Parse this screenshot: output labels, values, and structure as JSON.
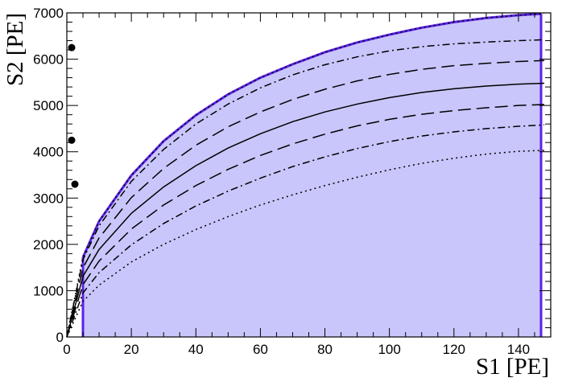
{
  "chart_data": {
    "type": "line",
    "xlabel": "S1 [PE]",
    "ylabel": "S2 [PE]",
    "xlim": [
      0,
      150
    ],
    "ylim": [
      0,
      7000
    ],
    "grid": false,
    "x_ticks": [
      "0",
      "20",
      "40",
      "60",
      "80",
      "100",
      "120",
      "140"
    ],
    "y_ticks": [
      "0",
      "1000",
      "2000",
      "3000",
      "4000",
      "5000",
      "6000",
      "7000"
    ],
    "colors": {
      "band_fill": "#c9c6fb",
      "band_edge": "#5a22e8",
      "lines": "#000000",
      "points": "#000000"
    },
    "acceptance_region": {
      "s1_min": 5,
      "s1_max": 147,
      "upper_edge": [
        {
          "x": 5,
          "y": 1720
        },
        {
          "x": 10,
          "y": 2500
        },
        {
          "x": 20,
          "y": 3490
        },
        {
          "x": 30,
          "y": 4230
        },
        {
          "x": 40,
          "y": 4790
        },
        {
          "x": 50,
          "y": 5240
        },
        {
          "x": 60,
          "y": 5600
        },
        {
          "x": 70,
          "y": 5890
        },
        {
          "x": 80,
          "y": 6150
        },
        {
          "x": 90,
          "y": 6360
        },
        {
          "x": 100,
          "y": 6530
        },
        {
          "x": 110,
          "y": 6680
        },
        {
          "x": 120,
          "y": 6800
        },
        {
          "x": 130,
          "y": 6890
        },
        {
          "x": 140,
          "y": 6950
        },
        {
          "x": 147,
          "y": 6980
        }
      ]
    },
    "series": [
      {
        "style": "dotted",
        "points": [
          {
            "x": 0,
            "y": 0
          },
          {
            "x": 5,
            "y": 770
          },
          {
            "x": 10,
            "y": 1120
          },
          {
            "x": 20,
            "y": 1620
          },
          {
            "x": 30,
            "y": 2000
          },
          {
            "x": 40,
            "y": 2320
          },
          {
            "x": 50,
            "y": 2600
          },
          {
            "x": 60,
            "y": 2850
          },
          {
            "x": 70,
            "y": 3070
          },
          {
            "x": 80,
            "y": 3270
          },
          {
            "x": 90,
            "y": 3450
          },
          {
            "x": 100,
            "y": 3610
          },
          {
            "x": 110,
            "y": 3750
          },
          {
            "x": 120,
            "y": 3860
          },
          {
            "x": 130,
            "y": 3950
          },
          {
            "x": 140,
            "y": 4010
          },
          {
            "x": 148,
            "y": 4030
          }
        ]
      },
      {
        "style": "dash-dot",
        "points": [
          {
            "x": 0,
            "y": 0
          },
          {
            "x": 5,
            "y": 950
          },
          {
            "x": 10,
            "y": 1390
          },
          {
            "x": 20,
            "y": 1990
          },
          {
            "x": 30,
            "y": 2450
          },
          {
            "x": 40,
            "y": 2830
          },
          {
            "x": 50,
            "y": 3150
          },
          {
            "x": 60,
            "y": 3430
          },
          {
            "x": 70,
            "y": 3680
          },
          {
            "x": 80,
            "y": 3890
          },
          {
            "x": 90,
            "y": 4070
          },
          {
            "x": 100,
            "y": 4220
          },
          {
            "x": 110,
            "y": 4340
          },
          {
            "x": 120,
            "y": 4430
          },
          {
            "x": 130,
            "y": 4500
          },
          {
            "x": 140,
            "y": 4550
          },
          {
            "x": 148,
            "y": 4580
          }
        ]
      },
      {
        "style": "long-dash",
        "points": [
          {
            "x": 0,
            "y": 0
          },
          {
            "x": 5,
            "y": 1130
          },
          {
            "x": 10,
            "y": 1640
          },
          {
            "x": 20,
            "y": 2330
          },
          {
            "x": 30,
            "y": 2850
          },
          {
            "x": 40,
            "y": 3270
          },
          {
            "x": 50,
            "y": 3620
          },
          {
            "x": 60,
            "y": 3920
          },
          {
            "x": 70,
            "y": 4170
          },
          {
            "x": 80,
            "y": 4380
          },
          {
            "x": 90,
            "y": 4560
          },
          {
            "x": 100,
            "y": 4700
          },
          {
            "x": 110,
            "y": 4810
          },
          {
            "x": 120,
            "y": 4890
          },
          {
            "x": 130,
            "y": 4950
          },
          {
            "x": 140,
            "y": 5000
          },
          {
            "x": 148,
            "y": 5020
          }
        ]
      },
      {
        "style": "solid",
        "points": [
          {
            "x": 0,
            "y": 0
          },
          {
            "x": 5,
            "y": 1310
          },
          {
            "x": 10,
            "y": 1890
          },
          {
            "x": 20,
            "y": 2670
          },
          {
            "x": 30,
            "y": 3240
          },
          {
            "x": 40,
            "y": 3700
          },
          {
            "x": 50,
            "y": 4080
          },
          {
            "x": 60,
            "y": 4390
          },
          {
            "x": 70,
            "y": 4650
          },
          {
            "x": 80,
            "y": 4860
          },
          {
            "x": 90,
            "y": 5030
          },
          {
            "x": 100,
            "y": 5170
          },
          {
            "x": 110,
            "y": 5280
          },
          {
            "x": 120,
            "y": 5360
          },
          {
            "x": 130,
            "y": 5420
          },
          {
            "x": 140,
            "y": 5460
          },
          {
            "x": 148,
            "y": 5480
          }
        ]
      },
      {
        "style": "long-dash",
        "points": [
          {
            "x": 0,
            "y": 0
          },
          {
            "x": 5,
            "y": 1490
          },
          {
            "x": 10,
            "y": 2140
          },
          {
            "x": 20,
            "y": 3010
          },
          {
            "x": 30,
            "y": 3640
          },
          {
            "x": 40,
            "y": 4140
          },
          {
            "x": 50,
            "y": 4540
          },
          {
            "x": 60,
            "y": 4860
          },
          {
            "x": 70,
            "y": 5130
          },
          {
            "x": 80,
            "y": 5350
          },
          {
            "x": 90,
            "y": 5530
          },
          {
            "x": 100,
            "y": 5670
          },
          {
            "x": 110,
            "y": 5780
          },
          {
            "x": 120,
            "y": 5860
          },
          {
            "x": 130,
            "y": 5910
          },
          {
            "x": 140,
            "y": 5950
          },
          {
            "x": 148,
            "y": 5970
          }
        ]
      },
      {
        "style": "dash-dot",
        "points": [
          {
            "x": 0,
            "y": 0
          },
          {
            "x": 5,
            "y": 1670
          },
          {
            "x": 10,
            "y": 2400
          },
          {
            "x": 20,
            "y": 3360
          },
          {
            "x": 30,
            "y": 4050
          },
          {
            "x": 40,
            "y": 4600
          },
          {
            "x": 50,
            "y": 5030
          },
          {
            "x": 60,
            "y": 5380
          },
          {
            "x": 70,
            "y": 5660
          },
          {
            "x": 80,
            "y": 5880
          },
          {
            "x": 90,
            "y": 6050
          },
          {
            "x": 100,
            "y": 6180
          },
          {
            "x": 110,
            "y": 6270
          },
          {
            "x": 120,
            "y": 6330
          },
          {
            "x": 130,
            "y": 6370
          },
          {
            "x": 140,
            "y": 6400
          },
          {
            "x": 148,
            "y": 6420
          }
        ]
      },
      {
        "style": "dotted",
        "points": [
          {
            "x": 0,
            "y": 0
          },
          {
            "x": 5,
            "y": 1730
          },
          {
            "x": 10,
            "y": 2500
          },
          {
            "x": 20,
            "y": 3490
          },
          {
            "x": 30,
            "y": 4230
          },
          {
            "x": 40,
            "y": 4790
          },
          {
            "x": 50,
            "y": 5240
          },
          {
            "x": 60,
            "y": 5600
          },
          {
            "x": 70,
            "y": 5890
          },
          {
            "x": 80,
            "y": 6150
          },
          {
            "x": 90,
            "y": 6360
          },
          {
            "x": 100,
            "y": 6530
          },
          {
            "x": 110,
            "y": 6680
          },
          {
            "x": 120,
            "y": 6800
          },
          {
            "x": 130,
            "y": 6890
          },
          {
            "x": 140,
            "y": 6950
          },
          {
            "x": 148,
            "y": 6980
          }
        ]
      }
    ],
    "events": [
      {
        "x": 1.5,
        "y": 6250
      },
      {
        "x": 1.5,
        "y": 4250
      },
      {
        "x": 2.5,
        "y": 3300
      }
    ]
  }
}
